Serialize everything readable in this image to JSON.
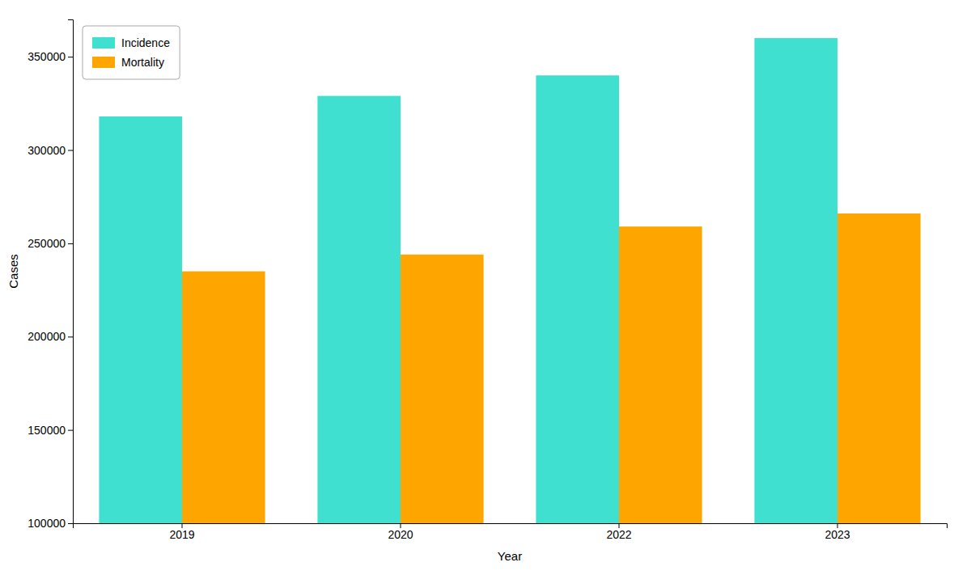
{
  "chart_data": {
    "type": "bar",
    "categories": [
      "2019",
      "2020",
      "2022",
      "2023"
    ],
    "series": [
      {
        "name": "Incidence",
        "color": "#40E0D0",
        "values": [
          318000,
          329000,
          340000,
          360000
        ]
      },
      {
        "name": "Mortality",
        "color": "#FFA500",
        "values": [
          235000,
          244000,
          259000,
          266000
        ]
      }
    ],
    "xlabel": "Year",
    "ylabel": "Cases",
    "ylim": [
      100000,
      370000
    ],
    "yticks": [
      100000,
      150000,
      200000,
      250000,
      300000,
      350000
    ],
    "legend": "upper left",
    "grid": false
  }
}
